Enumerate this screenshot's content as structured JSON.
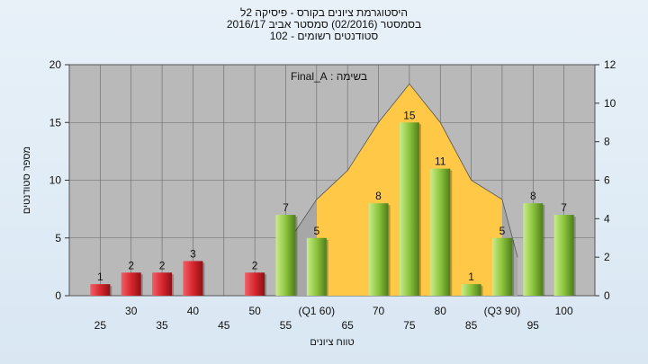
{
  "title": {
    "line1": "היסטוגרמת ציונים בקורס - פיסיקה 2ל",
    "line2": "בסמסטר  (02/2016)  סמסטר אביב 2016/17",
    "line3": "סטודנטים רשומים - 102"
  },
  "colors": {
    "plot_bg": "#b9b9b9",
    "area": "#ffc846",
    "fail_bar": "#d8262e",
    "pass_bar": "#8cc43c"
  },
  "chart_data": {
    "type": "bar",
    "annotation": "בשימה : Final_A",
    "ylabel": "מספר סטודנטים",
    "xlabel": "טווח ציונים",
    "ylim": [
      0,
      20
    ],
    "y2lim": [
      0,
      12
    ],
    "yticks": [
      "0",
      "5",
      "10",
      "15",
      "20"
    ],
    "y2ticks": [
      "0",
      "2",
      "4",
      "6",
      "8",
      "10",
      "12"
    ],
    "x_positions": [
      25,
      30,
      35,
      40,
      45,
      50,
      55,
      60,
      65,
      70,
      75,
      80,
      85,
      90,
      95,
      100
    ],
    "xticks_upper": [
      {
        "x": 30,
        "label": "30"
      },
      {
        "x": 40,
        "label": "40"
      },
      {
        "x": 50,
        "label": "50"
      },
      {
        "x": 60,
        "label": "(Q1 60)"
      },
      {
        "x": 70,
        "label": "70"
      },
      {
        "x": 80,
        "label": "80"
      },
      {
        "x": 90,
        "label": "(Q3 90)"
      },
      {
        "x": 100,
        "label": "100"
      }
    ],
    "xticks_lower": [
      {
        "x": 25,
        "label": "25"
      },
      {
        "x": 35,
        "label": "35"
      },
      {
        "x": 45,
        "label": "45"
      },
      {
        "x": 55,
        "label": "55"
      },
      {
        "x": 65,
        "label": "65"
      },
      {
        "x": 75,
        "label": "75"
      },
      {
        "x": 85,
        "label": "85"
      },
      {
        "x": 95,
        "label": "95"
      }
    ],
    "bars": [
      {
        "x": 25,
        "value": 1,
        "group": "fail"
      },
      {
        "x": 30,
        "value": 2,
        "group": "fail"
      },
      {
        "x": 35,
        "value": 2,
        "group": "fail"
      },
      {
        "x": 40,
        "value": 3,
        "group": "fail"
      },
      {
        "x": 50,
        "value": 2,
        "group": "fail"
      },
      {
        "x": 55,
        "value": 7,
        "group": "pass"
      },
      {
        "x": 60,
        "value": 5,
        "group": "pass"
      },
      {
        "x": 70,
        "value": 8,
        "group": "pass"
      },
      {
        "x": 75,
        "value": 15,
        "group": "pass"
      },
      {
        "x": 80,
        "value": 11,
        "group": "pass"
      },
      {
        "x": 85,
        "value": 1,
        "group": "pass"
      },
      {
        "x": 90,
        "value": 5,
        "group": "pass"
      },
      {
        "x": 95,
        "value": 8,
        "group": "pass"
      },
      {
        "x": 100,
        "value": 7,
        "group": "pass"
      }
    ],
    "area": {
      "x_range": [
        60,
        90
      ],
      "points": [
        [
          60,
          5
        ],
        [
          65,
          6.5
        ],
        [
          70,
          9
        ],
        [
          75,
          11
        ],
        [
          80,
          9
        ],
        [
          85,
          6
        ],
        [
          90,
          5
        ]
      ]
    }
  }
}
